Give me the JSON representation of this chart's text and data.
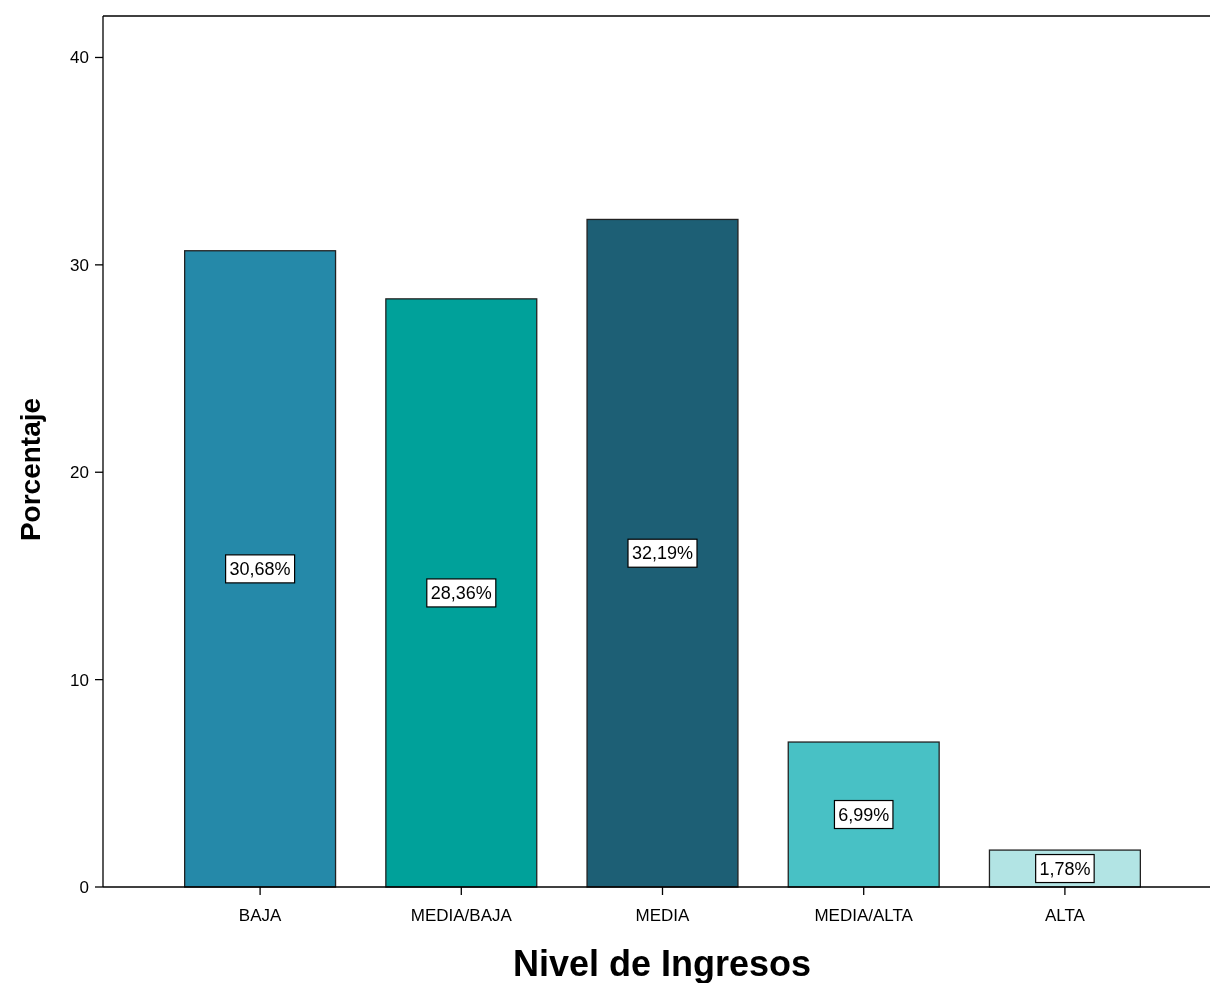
{
  "chart_data": {
    "type": "bar",
    "xlabel": "Nivel de Ingresos",
    "ylabel": "Porcentaje",
    "categories": [
      "BAJA",
      "MEDIA/BAJA",
      "MEDIA",
      "MEDIA/ALTA",
      "ALTA"
    ],
    "values": [
      30.68,
      28.36,
      32.19,
      6.99,
      1.78
    ],
    "value_labels": [
      "30,68%",
      "28,36%",
      "32,19%",
      "6,99%",
      "1,78%"
    ],
    "colors": [
      "#2589a9",
      "#00a19a",
      "#1d5f75",
      "#48c1c5",
      "#b2e4e4"
    ],
    "ylim": [
      0,
      42
    ],
    "yticks": [
      0,
      10,
      20,
      30,
      40
    ],
    "grid": false
  }
}
